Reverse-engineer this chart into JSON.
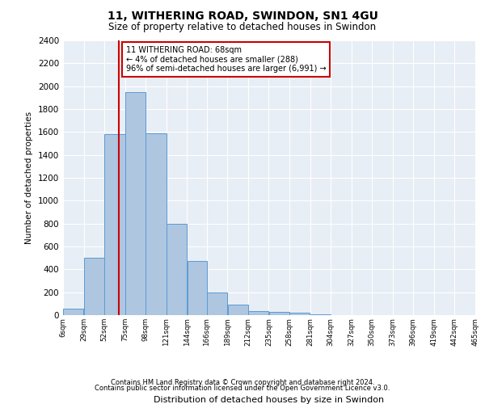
{
  "title": "11, WITHERING ROAD, SWINDON, SN1 4GU",
  "subtitle": "Size of property relative to detached houses in Swindon",
  "xlabel": "Distribution of detached houses by size in Swindon",
  "ylabel": "Number of detached properties",
  "bar_color": "#aec6e0",
  "bar_edge_color": "#5b9bd5",
  "background_color": "#e8eef5",
  "grid_color": "#ffffff",
  "vline_x": 68,
  "vline_color": "#cc0000",
  "annotation_text": "11 WITHERING ROAD: 68sqm\n← 4% of detached houses are smaller (288)\n96% of semi-detached houses are larger (6,991) →",
  "annotation_box_color": "#cc0000",
  "bin_edges": [
    6,
    29,
    52,
    75,
    98,
    121,
    144,
    166,
    189,
    212,
    235,
    258,
    281,
    304,
    327,
    350,
    373,
    396,
    419,
    442,
    465
  ],
  "bar_heights": [
    55,
    500,
    1580,
    1950,
    1590,
    800,
    475,
    195,
    90,
    35,
    28,
    20,
    5,
    0,
    0,
    0,
    0,
    0,
    0,
    0
  ],
  "ylim": [
    0,
    2400
  ],
  "yticks": [
    0,
    200,
    400,
    600,
    800,
    1000,
    1200,
    1400,
    1600,
    1800,
    2000,
    2200,
    2400
  ],
  "footer_line1": "Contains HM Land Registry data © Crown copyright and database right 2024.",
  "footer_line2": "Contains public sector information licensed under the Open Government Licence v3.0."
}
